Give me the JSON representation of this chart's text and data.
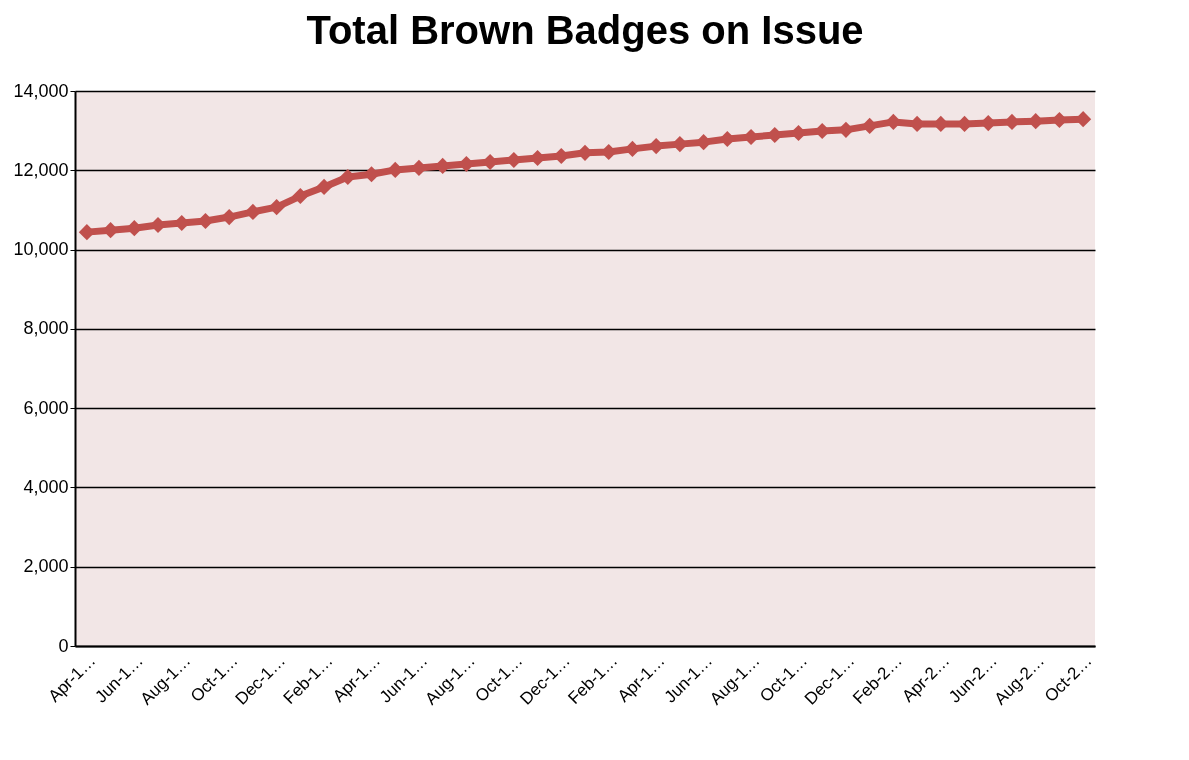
{
  "chart_data": {
    "type": "line",
    "title": "Total Brown Badges on Issue",
    "categories": [
      "Apr-1…",
      null,
      "Jun-1…",
      null,
      "Aug-1…",
      null,
      "Oct-1…",
      null,
      "Dec-1…",
      null,
      "Feb-1…",
      null,
      "Apr-1…",
      null,
      "Jun-1…",
      null,
      "Aug-1…",
      null,
      "Oct-1…",
      null,
      "Dec-1…",
      null,
      "Feb-1…",
      null,
      "Apr-1…",
      null,
      "Jun-1…",
      null,
      "Aug-1…",
      null,
      "Oct-1…",
      null,
      "Dec-1…",
      null,
      "Feb-2…",
      null,
      "Apr-2…",
      null,
      "Jun-2…",
      null,
      "Aug-2…",
      null,
      "Oct-2…"
    ],
    "series": [
      {
        "color": "#c0504d",
        "values": [
          10440,
          10490,
          10540,
          10620,
          10670,
          10720,
          10820,
          10950,
          11070,
          11350,
          11580,
          11830,
          11900,
          12010,
          12060,
          12110,
          12160,
          12210,
          12260,
          12310,
          12360,
          12440,
          12460,
          12540,
          12610,
          12660,
          12710,
          12790,
          12840,
          12890,
          12940,
          12990,
          13020,
          13120,
          13220,
          13170,
          13170,
          13170,
          13190,
          13220,
          13240,
          13270,
          13290
        ]
      }
    ],
    "ylim": [
      0,
      14000
    ],
    "yticks": [
      0,
      {
        "value": 2000,
        "label": "2,000"
      },
      {
        "value": 4000,
        "label": "4,000"
      },
      {
        "value": 6000,
        "label": "6,000"
      },
      {
        "value": 8000,
        "label": "8,000"
      },
      {
        "value": 10000,
        "label": "10,000"
      },
      {
        "value": 12000,
        "label": "12,000"
      },
      {
        "value": 14000,
        "label": "14,000"
      }
    ],
    "grid": "y",
    "marker": "diamond",
    "line_style": "solid"
  }
}
